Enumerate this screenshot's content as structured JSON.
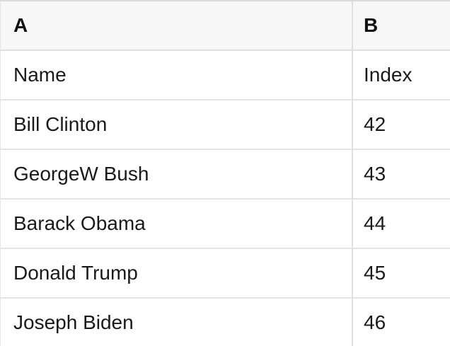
{
  "table": {
    "column_headers": [
      {
        "label": "A"
      },
      {
        "label": "B"
      }
    ],
    "rows": [
      {
        "A": "Name",
        "B": "Index"
      },
      {
        "A": "Bill Clinton",
        "B": "42"
      },
      {
        "A": "GeorgeW Bush",
        "B": "43"
      },
      {
        "A": "Barack Obama",
        "B": "44"
      },
      {
        "A": "Donald Trump",
        "B": "45"
      },
      {
        "A": "Joseph Biden",
        "B": "46"
      }
    ]
  },
  "colors": {
    "header_background": "#f7f7f7",
    "cell_background": "#ffffff",
    "grid_line": "#e3e3e3",
    "column_divider": "#e0e0e0",
    "top_border": "#d9d9d9",
    "text": "#1a1a1a"
  }
}
